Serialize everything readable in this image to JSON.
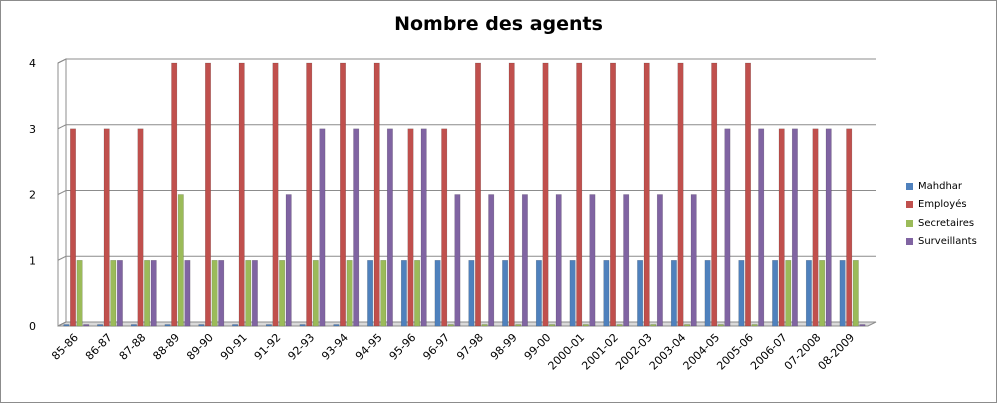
{
  "chart_data": {
    "type": "bar",
    "title": "Nombre des agents",
    "xlabel": "",
    "ylabel": "",
    "ylim": [
      0,
      4
    ],
    "yticks": [
      "0",
      "1",
      "2",
      "3",
      "4"
    ],
    "grid": true,
    "legend_position": "right",
    "categories": [
      "85-86",
      "86-87",
      "87-88",
      "88-89",
      "89-90",
      "90-91",
      "91-92",
      "92-93",
      "93-94",
      "94-95",
      "95-96",
      "96-97",
      "97-98",
      "98-99",
      "99-00",
      "2000-01",
      "2001-02",
      "2002-03",
      "2003-04",
      "2004-05",
      "2005-06",
      "2006-07",
      "07-2008",
      "08-2009"
    ],
    "series": [
      {
        "name": "Mahdhar",
        "color": "#4f81bd",
        "values": [
          0,
          0,
          0,
          0,
          0,
          0,
          0,
          0,
          0,
          1,
          1,
          1,
          1,
          1,
          1,
          1,
          1,
          1,
          1,
          1,
          1,
          1,
          1,
          1
        ]
      },
      {
        "name": "Employés",
        "color": "#c0504d",
        "values": [
          3,
          3,
          3,
          4,
          4,
          4,
          4,
          4,
          4,
          4,
          3,
          3,
          4,
          4,
          4,
          4,
          4,
          4,
          4,
          4,
          4,
          3,
          3,
          3
        ]
      },
      {
        "name": "Secretaires",
        "color": "#9bbb59",
        "values": [
          1,
          1,
          1,
          2,
          1,
          1,
          1,
          1,
          1,
          1,
          1,
          0,
          0,
          0,
          0,
          0,
          0,
          0,
          0,
          0,
          0,
          1,
          1,
          1
        ]
      },
      {
        "name": "Surveillants",
        "color": "#8064a2",
        "values": [
          0,
          1,
          1,
          1,
          1,
          1,
          2,
          3,
          3,
          3,
          3,
          2,
          2,
          2,
          2,
          2,
          2,
          2,
          2,
          3,
          3,
          3,
          3,
          0
        ]
      }
    ]
  }
}
